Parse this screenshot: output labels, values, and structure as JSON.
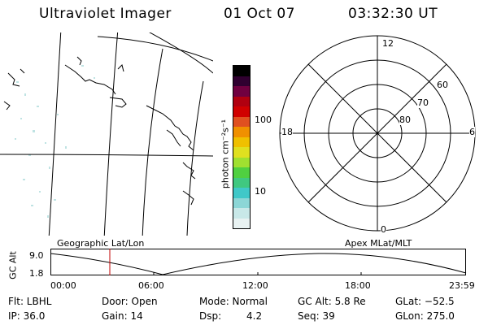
{
  "header": {
    "title": "Ultraviolet Imager",
    "date": "01 Oct 07",
    "time": "03:32:30 UT"
  },
  "colorbar": {
    "unit_label": "photon cm⁻²s⁻¹",
    "ticks": [
      "100",
      "10"
    ],
    "colors": [
      "#e8f2f2",
      "#c8e8e8",
      "#8cd6d6",
      "#40c8c8",
      "#40c880",
      "#50d040",
      "#a0e030",
      "#e0e020",
      "#f0c000",
      "#f09000",
      "#e05020",
      "#d00000",
      "#b00010",
      "#700040",
      "#300030",
      "#000000"
    ]
  },
  "polar_plot": {
    "mlt_labels": {
      "top": "12",
      "bottom": "0",
      "left": "18",
      "right": "6"
    },
    "lat_labels": [
      "60",
      "70",
      "80"
    ]
  },
  "map_panel": {
    "label": "Geographic Lat/Lon"
  },
  "orbit_panel": {
    "left_label": "Geographic Lat/Lon",
    "right_label": "Apex MLat/MLT",
    "axis_title": "GC Alt",
    "y_ticks": [
      "9.0",
      "1.8"
    ],
    "x_ticks": [
      "00:00",
      "06:00",
      "12:00",
      "18:00",
      "23:59"
    ],
    "current_time_marker_color": "#c00000"
  },
  "info": {
    "row1": {
      "flt": "Flt: LBHL",
      "door": "Door: Open",
      "mode": "Mode: Normal",
      "gc_alt": "GC Alt: 5.8 Re",
      "glat": "GLat: −52.5"
    },
    "row2": {
      "ip": "IP: 36.0",
      "gain": "Gain: 14",
      "dsp_label": "Dsp:",
      "dsp_value": "4.2",
      "seq": "Seq: 39",
      "glon": "GLon: 275.0"
    }
  }
}
